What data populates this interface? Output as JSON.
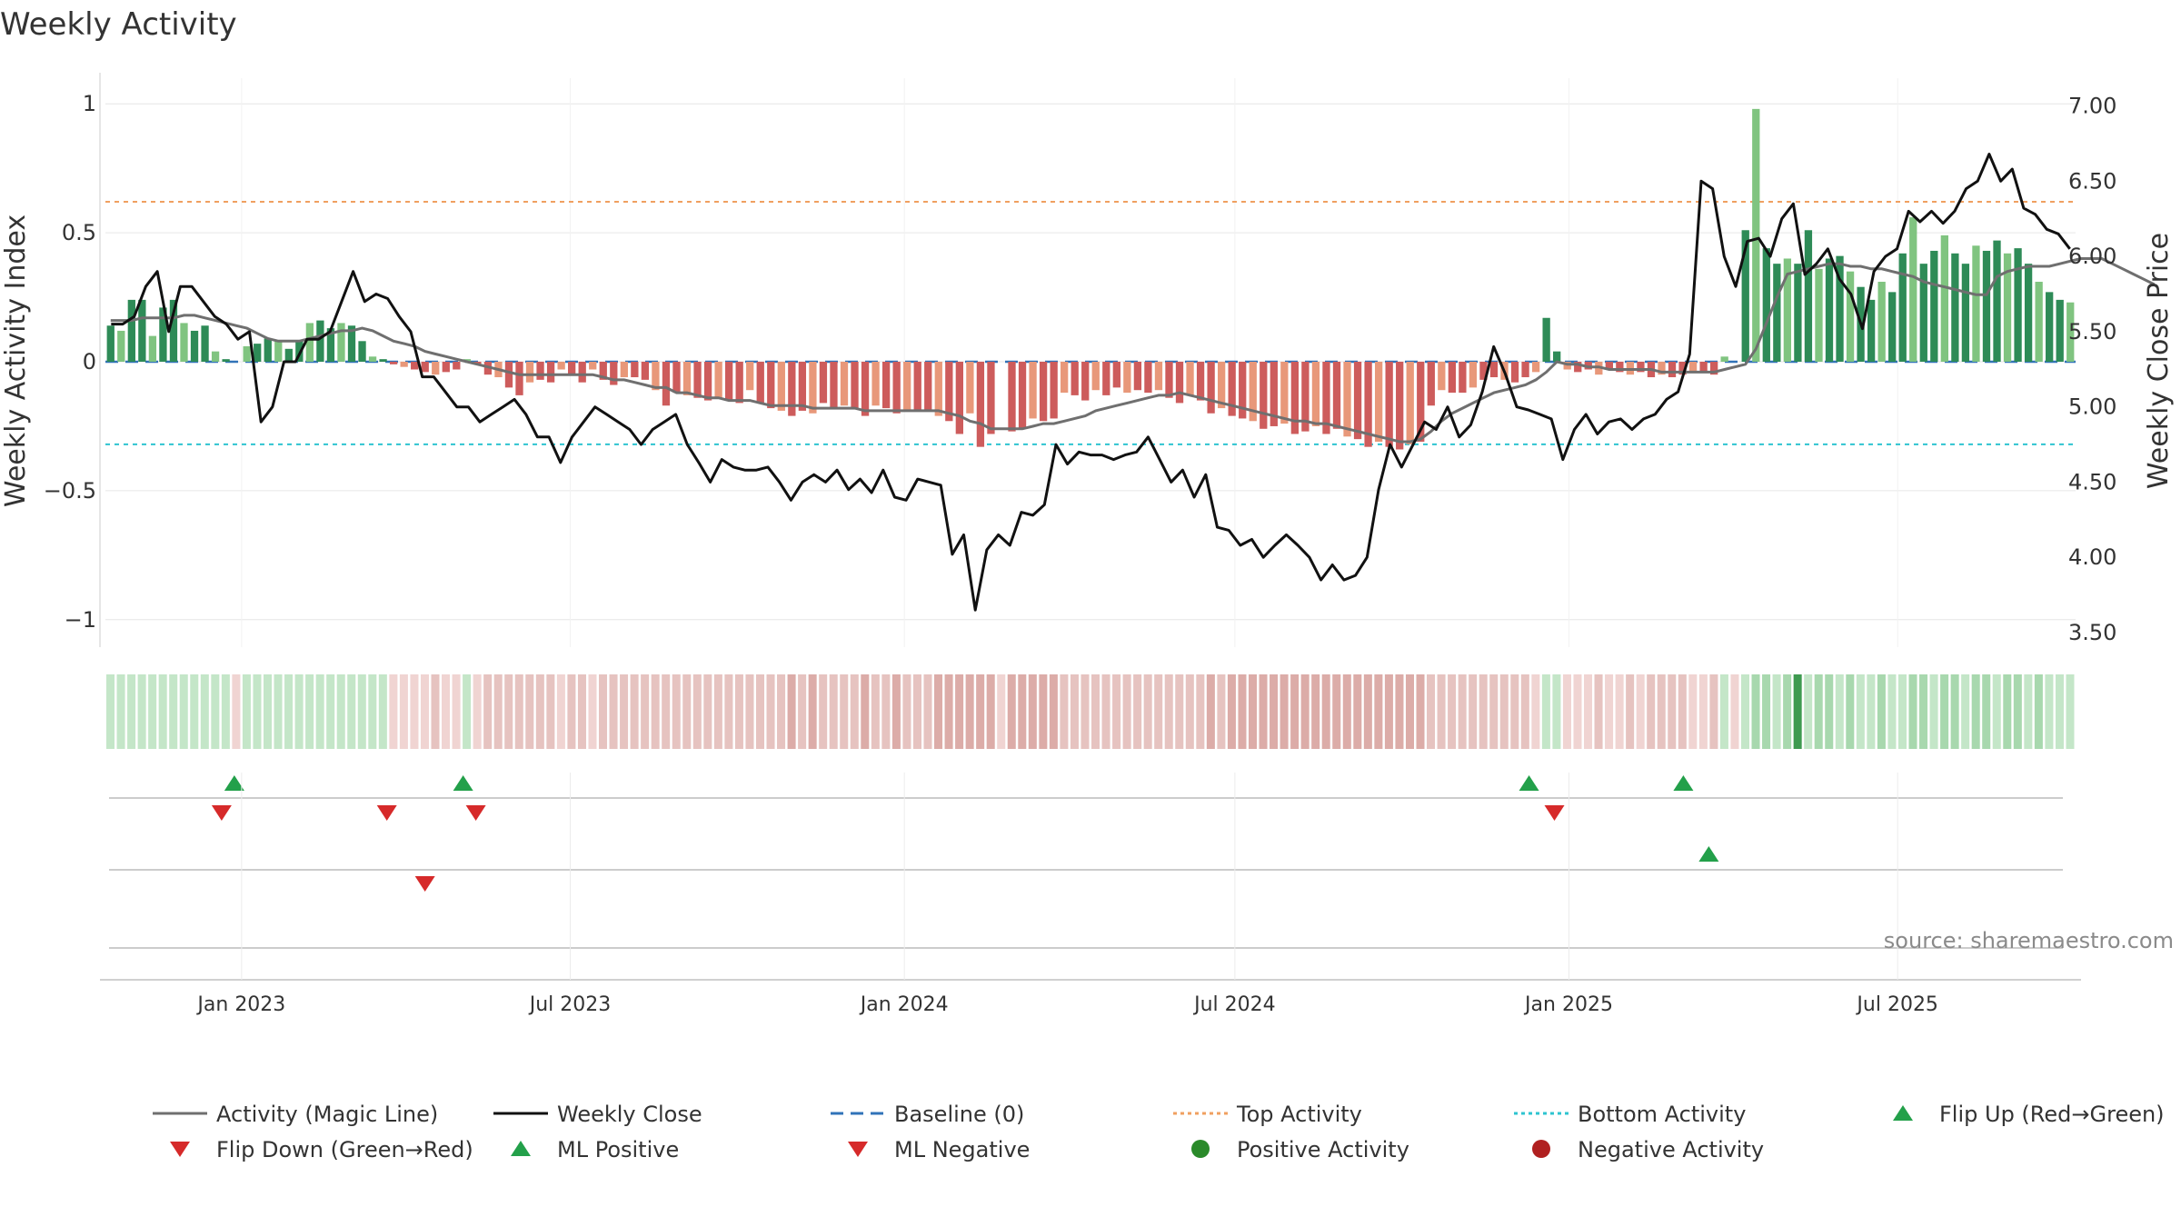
{
  "chart_data": {
    "type": "bar",
    "title": "Weekly Activity",
    "ylabel": "Weekly Activity Index",
    "y2label": "Weekly Close Price",
    "ylim": [
      -1.05,
      1.05
    ],
    "y2lim": [
      3.5,
      7.1
    ],
    "yticks": [
      1,
      0.5,
      0,
      -0.5,
      -1
    ],
    "ytick_labels": [
      "1",
      "0.5",
      "0",
      "−0.5",
      "−1"
    ],
    "y2ticks": [
      7.0,
      6.5,
      6.0,
      5.5,
      5.0,
      4.5,
      4.0,
      3.5
    ],
    "y2tick_labels": [
      "7.00",
      "6.50",
      "6.00",
      "5.50",
      "5.00",
      "4.50",
      "4.00",
      "3.50"
    ],
    "x_start": "2022-10-18",
    "x_end": "2025-10-07",
    "xticks": [
      {
        "label": "Jan 2023",
        "date": "2023-01-01"
      },
      {
        "label": "Jul 2023",
        "date": "2023-07-01"
      },
      {
        "label": "Jan 2024",
        "date": "2024-01-01"
      },
      {
        "label": "Jul 2024",
        "date": "2024-07-01"
      },
      {
        "label": "Jan 2025",
        "date": "2025-01-01"
      },
      {
        "label": "Jul 2025",
        "date": "2025-07-01"
      }
    ],
    "reference_lines": {
      "baseline": 0,
      "top_activity": 0.62,
      "bottom_activity": -0.32
    },
    "activity_values": [
      0.14,
      0.12,
      0.24,
      0.24,
      0.1,
      0.21,
      0.24,
      0.15,
      0.12,
      0.14,
      0.04,
      0.01,
      0.0,
      0.06,
      0.07,
      0.09,
      0.08,
      0.05,
      0.08,
      0.15,
      0.16,
      0.13,
      0.15,
      0.14,
      0.08,
      0.02,
      0.01,
      -0.01,
      -0.02,
      -0.03,
      -0.04,
      -0.05,
      -0.04,
      -0.03,
      0.01,
      -0.01,
      -0.05,
      -0.06,
      -0.1,
      -0.13,
      -0.08,
      -0.07,
      -0.08,
      -0.03,
      -0.05,
      -0.08,
      -0.03,
      -0.07,
      -0.09,
      -0.06,
      -0.06,
      -0.07,
      -0.11,
      -0.17,
      -0.12,
      -0.13,
      -0.14,
      -0.15,
      -0.14,
      -0.15,
      -0.16,
      -0.11,
      -0.16,
      -0.18,
      -0.19,
      -0.21,
      -0.19,
      -0.2,
      -0.16,
      -0.18,
      -0.17,
      -0.18,
      -0.21,
      -0.17,
      -0.18,
      -0.2,
      -0.19,
      -0.19,
      -0.19,
      -0.21,
      -0.23,
      -0.28,
      -0.2,
      -0.33,
      -0.28,
      -0.0,
      -0.27,
      -0.26,
      -0.22,
      -0.23,
      -0.22,
      -0.12,
      -0.13,
      -0.15,
      -0.11,
      -0.13,
      -0.1,
      -0.12,
      -0.11,
      -0.12,
      -0.11,
      -0.14,
      -0.16,
      -0.13,
      -0.15,
      -0.2,
      -0.18,
      -0.21,
      -0.22,
      -0.23,
      -0.26,
      -0.25,
      -0.24,
      -0.28,
      -0.27,
      -0.25,
      -0.28,
      -0.26,
      -0.29,
      -0.3,
      -0.33,
      -0.31,
      -0.33,
      -0.34,
      -0.32,
      -0.31,
      -0.17,
      -0.11,
      -0.12,
      -0.12,
      -0.1,
      -0.07,
      -0.06,
      -0.07,
      -0.08,
      -0.06,
      -0.04,
      0.17,
      0.04,
      -0.03,
      -0.04,
      -0.03,
      -0.05,
      -0.03,
      -0.04,
      -0.05,
      -0.04,
      -0.06,
      -0.05,
      -0.06,
      -0.05,
      -0.04,
      -0.04,
      -0.05,
      0.02,
      0.0,
      0.51,
      0.98,
      0.44,
      0.38,
      0.4,
      0.38,
      0.51,
      0.36,
      0.4,
      0.41,
      0.35,
      0.29,
      0.24,
      0.31,
      0.27,
      0.42,
      0.56,
      0.38,
      0.43,
      0.49,
      0.42,
      0.38,
      0.45,
      0.43,
      0.47,
      0.42,
      0.44,
      0.38,
      0.31,
      0.27,
      0.24,
      0.23
    ],
    "magic_line_values": [
      0.16,
      0.16,
      0.16,
      0.17,
      0.17,
      0.17,
      0.17,
      0.18,
      0.18,
      0.17,
      0.16,
      0.15,
      0.14,
      0.13,
      0.11,
      0.09,
      0.08,
      0.08,
      0.08,
      0.09,
      0.1,
      0.11,
      0.12,
      0.12,
      0.13,
      0.12,
      0.1,
      0.08,
      0.07,
      0.06,
      0.04,
      0.03,
      0.02,
      0.01,
      0.0,
      -0.01,
      -0.02,
      -0.03,
      -0.04,
      -0.05,
      -0.05,
      -0.05,
      -0.05,
      -0.05,
      -0.05,
      -0.05,
      -0.05,
      -0.06,
      -0.07,
      -0.07,
      -0.08,
      -0.09,
      -0.1,
      -0.1,
      -0.12,
      -0.12,
      -0.13,
      -0.14,
      -0.14,
      -0.15,
      -0.15,
      -0.15,
      -0.16,
      -0.17,
      -0.17,
      -0.17,
      -0.17,
      -0.18,
      -0.18,
      -0.18,
      -0.18,
      -0.18,
      -0.19,
      -0.19,
      -0.19,
      -0.19,
      -0.19,
      -0.19,
      -0.19,
      -0.19,
      -0.2,
      -0.21,
      -0.23,
      -0.24,
      -0.26,
      -0.26,
      -0.26,
      -0.26,
      -0.25,
      -0.24,
      -0.24,
      -0.23,
      -0.22,
      -0.21,
      -0.19,
      -0.18,
      -0.17,
      -0.16,
      -0.15,
      -0.14,
      -0.13,
      -0.13,
      -0.12,
      -0.13,
      -0.14,
      -0.15,
      -0.16,
      -0.17,
      -0.18,
      -0.19,
      -0.2,
      -0.21,
      -0.22,
      -0.23,
      -0.23,
      -0.24,
      -0.24,
      -0.25,
      -0.26,
      -0.27,
      -0.28,
      -0.29,
      -0.3,
      -0.31,
      -0.31,
      -0.3,
      -0.27,
      -0.23,
      -0.2,
      -0.18,
      -0.16,
      -0.14,
      -0.12,
      -0.11,
      -0.1,
      -0.09,
      -0.07,
      -0.04,
      0.0,
      -0.01,
      -0.01,
      -0.02,
      -0.02,
      -0.03,
      -0.03,
      -0.03,
      -0.03,
      -0.03,
      -0.04,
      -0.04,
      -0.04,
      -0.04,
      -0.04,
      -0.04,
      -0.03,
      -0.02,
      -0.01,
      0.05,
      0.15,
      0.25,
      0.34,
      0.35,
      0.36,
      0.37,
      0.38,
      0.38,
      0.37,
      0.37,
      0.36,
      0.36,
      0.35,
      0.34,
      0.33,
      0.31,
      0.3,
      0.29,
      0.28,
      0.27,
      0.26,
      0.26,
      0.33,
      0.35,
      0.36,
      0.37,
      0.37,
      0.37,
      0.38,
      0.39,
      0.4,
      0.4,
      0.4,
      0.38,
      0.36,
      0.34,
      0.32,
      0.3
    ],
    "close_values": [
      5.55,
      5.55,
      5.6,
      5.8,
      5.9,
      5.5,
      5.8,
      5.8,
      5.7,
      5.6,
      5.55,
      5.45,
      5.5,
      4.9,
      5.0,
      5.3,
      5.3,
      5.45,
      5.45,
      5.5,
      5.7,
      5.9,
      5.7,
      5.75,
      5.72,
      5.6,
      5.5,
      5.2,
      5.2,
      5.1,
      5.0,
      5.0,
      4.9,
      4.95,
      5.0,
      5.05,
      4.95,
      4.8,
      4.8,
      4.63,
      4.8,
      4.9,
      5.0,
      4.95,
      4.9,
      4.85,
      4.75,
      4.85,
      4.9,
      4.95,
      4.75,
      4.63,
      4.5,
      4.65,
      4.6,
      4.58,
      4.58,
      4.6,
      4.5,
      4.38,
      4.5,
      4.55,
      4.5,
      4.58,
      4.45,
      4.52,
      4.43,
      4.58,
      4.4,
      4.38,
      4.52,
      4.5,
      4.48,
      4.02,
      4.15,
      3.65,
      4.05,
      4.15,
      4.08,
      4.3,
      4.28,
      4.35,
      4.75,
      4.62,
      4.7,
      4.68,
      4.68,
      4.65,
      4.68,
      4.7,
      4.8,
      4.65,
      4.5,
      4.58,
      4.4,
      4.55,
      4.2,
      4.18,
      4.08,
      4.12,
      4.0,
      4.08,
      4.15,
      4.08,
      4.0,
      3.85,
      3.95,
      3.85,
      3.88,
      4.0,
      4.45,
      4.75,
      4.6,
      4.75,
      4.9,
      4.85,
      5.0,
      4.8,
      4.88,
      5.1,
      5.4,
      5.22,
      5.0,
      4.98,
      4.95,
      4.92,
      4.65,
      4.85,
      4.95,
      4.82,
      4.9,
      4.92,
      4.85,
      4.92,
      4.95,
      5.05,
      5.1,
      5.35,
      6.5,
      6.45,
      6.0,
      5.8,
      6.1,
      6.12,
      6.0,
      6.25,
      6.35,
      5.88,
      5.95,
      6.05,
      5.85,
      5.75,
      5.52,
      5.9,
      6.0,
      6.05,
      6.3,
      6.23,
      6.3,
      6.22,
      6.3,
      6.45,
      6.5,
      6.68,
      6.5,
      6.58,
      6.32,
      6.28,
      6.18,
      6.15,
      6.05
    ],
    "trend_strip": {
      "labels_hidden": true,
      "palette": [
        "#c4e6c8",
        "#a8d8ae",
        "#dbe9d5",
        "#f0d4d2",
        "#e6c3c0",
        "#dcaca8",
        "#3e9a50"
      ]
    },
    "flip_up_dates": [
      "2022-12-28",
      "2023-05-03",
      "2024-12-10",
      "2025-03-05"
    ],
    "flip_down_dates": [
      "2022-12-21",
      "2023-03-22",
      "2023-05-10",
      "2024-12-24"
    ],
    "ml_positive_dates": [
      "2025-03-19"
    ],
    "ml_negative_dates": [
      "2023-04-12"
    ],
    "series": [
      {
        "name": "Activity (Magic Line)",
        "color": "#6f6f6f",
        "style": "solid"
      },
      {
        "name": "Weekly Close",
        "color": "#111111",
        "style": "solid"
      },
      {
        "name": "Baseline (0)",
        "color": "#3173b8",
        "style": "dashed"
      },
      {
        "name": "Top Activity",
        "color": "#f0a060",
        "style": "dotted"
      },
      {
        "name": "Bottom Activity",
        "color": "#2ec4d0",
        "style": "dotted"
      }
    ],
    "legend": [
      {
        "label": "Activity (Magic Line)",
        "kind": "line",
        "color": "#6f6f6f",
        "dash": ""
      },
      {
        "label": "Weekly Close",
        "kind": "line",
        "color": "#111111",
        "dash": ""
      },
      {
        "label": "Baseline (0)",
        "kind": "line",
        "color": "#3173b8",
        "dash": "14,8"
      },
      {
        "label": "Top Activity",
        "kind": "line",
        "color": "#f0a060",
        "dash": "4,4"
      },
      {
        "label": "Bottom Activity",
        "kind": "line",
        "color": "#2ec4d0",
        "dash": "4,4"
      },
      {
        "label": "Flip Up (Red→Green)",
        "kind": "triangle-up",
        "color": "#23a04a"
      },
      {
        "label": "Flip Down (Green→Red)",
        "kind": "triangle-down",
        "color": "#d62a2a"
      },
      {
        "label": "ML Positive",
        "kind": "triangle-up",
        "color": "#23a04a"
      },
      {
        "label": "ML Negative",
        "kind": "triangle-down",
        "color": "#d62a2a"
      },
      {
        "label": "Positive Activity",
        "kind": "circle",
        "color": "#2a8a2a"
      },
      {
        "label": "Negative Activity",
        "kind": "circle",
        "color": "#b02020"
      }
    ],
    "legend_placement": "bottom",
    "source": "source: sharemaestro.com",
    "colors": {
      "pos_dark": "#2e8b57",
      "pos_light": "#80c480",
      "neg_dark": "#cd5c5c",
      "neg_light": "#e8987a",
      "grid": "#e6e6e6"
    }
  }
}
